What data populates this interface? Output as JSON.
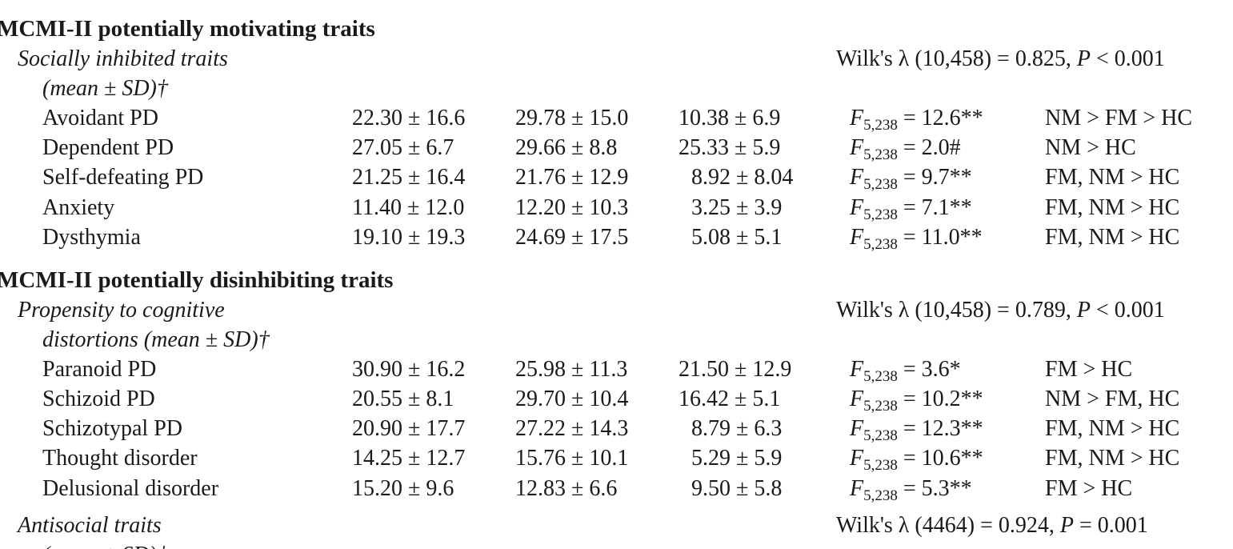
{
  "sections": [
    {
      "title": "MCMI-II potentially motivating traits",
      "group_label": "Socially inhibited traits",
      "group_sub": "(mean ± SD)†",
      "wilks": {
        "prefix": "Wilk's λ (10,458) = 0.825, ",
        "p_label": "P",
        "p_rest": " < 0.001"
      },
      "rows": [
        {
          "label": "Avoidant PD",
          "fm": "22.30 ± 16.6",
          "nm": "29.78 ± 15.0",
          "hc": "10.38 ± 6.9",
          "f_stat": "F",
          "f_sub": "5,238",
          "f_val": " = 12.6**",
          "posthoc": "NM > FM > HC"
        },
        {
          "label": "Dependent PD",
          "fm": "27.05 ± 6.7",
          "nm": "29.66 ± 8.8",
          "hc": "25.33 ± 5.9",
          "f_stat": "F",
          "f_sub": "5,238",
          "f_val": " = 2.0#",
          "posthoc": "NM > HC"
        },
        {
          "label": "Self-defeating PD",
          "fm": "21.25 ± 16.4",
          "nm": "21.76 ± 12.9",
          "hc": "8.92 ± 8.04",
          "f_stat": "F",
          "f_sub": "5,238",
          "f_val": " = 9.7**",
          "posthoc": "FM, NM > HC"
        },
        {
          "label": "Anxiety",
          "fm": "11.40 ± 12.0",
          "nm": "12.20 ± 10.3",
          "hc": "3.25 ± 3.9",
          "f_stat": "F",
          "f_sub": "5,238",
          "f_val": " = 7.1**",
          "posthoc": "FM, NM > HC"
        },
        {
          "label": "Dysthymia",
          "fm": "19.10 ± 19.3",
          "nm": "24.69 ± 17.5",
          "hc": "5.08 ± 5.1",
          "f_stat": "F",
          "f_sub": "5,238",
          "f_val": " = 11.0**",
          "posthoc": "FM, NM > HC"
        }
      ]
    },
    {
      "title": "MCMI-II potentially disinhibiting traits",
      "group_label": "Propensity to cognitive",
      "group_sub": "distortions (mean ± SD)†",
      "wilks": {
        "prefix": "Wilk's λ (10,458) = 0.789, ",
        "p_label": "P",
        "p_rest": " < 0.001"
      },
      "rows": [
        {
          "label": "Paranoid PD",
          "fm": "30.90 ± 16.2",
          "nm": "25.98 ± 11.3",
          "hc": "21.50 ± 12.9",
          "f_stat": "F",
          "f_sub": "5,238",
          "f_val": " = 3.6*",
          "posthoc": "FM > HC"
        },
        {
          "label": "Schizoid PD",
          "fm": "20.55 ± 8.1",
          "nm": "29.70 ± 10.4",
          "hc": "16.42 ± 5.1",
          "f_stat": "F",
          "f_sub": "5,238",
          "f_val": " = 10.2**",
          "posthoc": "NM > FM, HC"
        },
        {
          "label": "Schizotypal PD",
          "fm": "20.90 ± 17.7",
          "nm": "27.22 ± 14.3",
          "hc": "8.79 ± 6.3",
          "f_stat": "F",
          "f_sub": "5,238",
          "f_val": " = 12.3**",
          "posthoc": "FM, NM > HC"
        },
        {
          "label": "Thought disorder",
          "fm": "14.25 ± 12.7",
          "nm": "15.76 ± 10.1",
          "hc": "5.29 ± 5.9",
          "f_stat": "F",
          "f_sub": "5,238",
          "f_val": " = 10.6**",
          "posthoc": "FM, NM > HC"
        },
        {
          "label": "Delusional disorder",
          "fm": "15.20 ± 9.6",
          "nm": "12.83 ± 6.6",
          "hc": "9.50 ± 5.8",
          "f_stat": "F",
          "f_sub": "5,238",
          "f_val": " = 5.3**",
          "posthoc": "FM > HC"
        }
      ]
    }
  ],
  "antisocial": {
    "group_label": "Antisocial traits",
    "group_sub": "(mean ± SD)†",
    "wilks": {
      "prefix": "Wilk's λ (4464) = 0.924, ",
      "p_label": "P",
      "p_rest": " = 0.001"
    }
  }
}
